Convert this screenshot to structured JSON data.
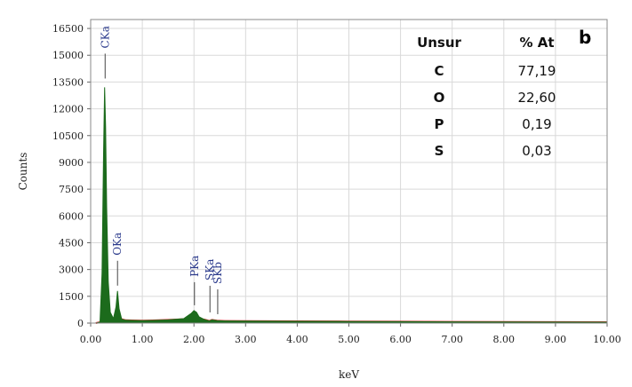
{
  "panel_label": "b",
  "chart_data": {
    "type": "line",
    "xlabel": "keV",
    "ylabel": "Counts",
    "xlim": [
      0,
      10
    ],
    "ylim": [
      0,
      17000
    ],
    "x_ticks": [
      "0.00",
      "1.00",
      "2.00",
      "3.00",
      "4.00",
      "5.00",
      "6.00",
      "7.00",
      "8.00",
      "9.00",
      "10.00"
    ],
    "y_ticks": [
      "0",
      "1500",
      "3000",
      "4500",
      "6000",
      "7500",
      "9000",
      "10500",
      "12000",
      "13500",
      "15000",
      "16500"
    ],
    "y_tick_values": [
      0,
      1500,
      3000,
      4500,
      6000,
      7500,
      9000,
      10500,
      12000,
      13500,
      15000,
      16500
    ],
    "grid": true,
    "spectrum": {
      "x": [
        0.1,
        0.18,
        0.22,
        0.25,
        0.27,
        0.29,
        0.31,
        0.34,
        0.38,
        0.44,
        0.49,
        0.52,
        0.55,
        0.6,
        0.68,
        0.8,
        1.0,
        1.2,
        1.5,
        1.8,
        1.95,
        2.0,
        2.05,
        2.1,
        2.2,
        2.3,
        2.35,
        2.45,
        2.6,
        3.0,
        4.0,
        5.0,
        6.0,
        7.0,
        8.0,
        9.0,
        10.0
      ],
      "y": [
        0,
        50,
        2800,
        9500,
        13200,
        11000,
        6500,
        2300,
        600,
        250,
        900,
        1800,
        800,
        220,
        160,
        150,
        140,
        150,
        180,
        250,
        550,
        700,
        600,
        350,
        200,
        120,
        180,
        140,
        120,
        110,
        100,
        90,
        80,
        70,
        60,
        55,
        50
      ]
    },
    "peaks": [
      {
        "label": "CKa",
        "x": 0.28,
        "y": 13200
      },
      {
        "label": "OKa",
        "x": 0.52,
        "y": 1800
      },
      {
        "label": "PKa",
        "x": 2.01,
        "y": 700
      },
      {
        "label": "SKa",
        "x": 2.31,
        "y": 400
      },
      {
        "label": "SKb",
        "x": 2.46,
        "y": 300
      }
    ],
    "table": {
      "headers": [
        "Unsur",
        "% At"
      ],
      "rows": [
        {
          "element": "C",
          "value": "77,19"
        },
        {
          "element": "O",
          "value": "22,60"
        },
        {
          "element": "P",
          "value": "0,19"
        },
        {
          "element": "S",
          "value": "0,03"
        }
      ]
    },
    "colors": {
      "spectrum": "#1c6b1c",
      "baseline": "#d32f2f",
      "peak_label": "#2b3a8c"
    }
  }
}
